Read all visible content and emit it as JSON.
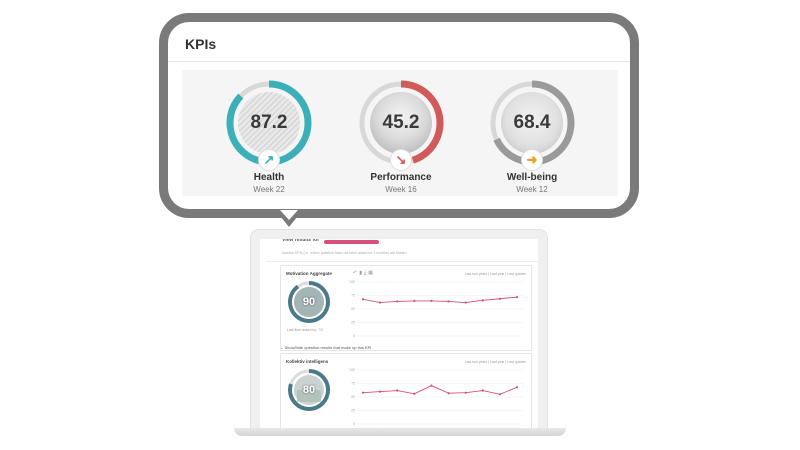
{
  "kpis": {
    "title": "KPIs",
    "items": [
      {
        "value": "87.2",
        "name": "Health",
        "week": "Week 22",
        "progress": 0.87,
        "color": "#3bb0b9",
        "trend": "up",
        "trend_color": "#3bb0b9",
        "trend_glyph": "↗"
      },
      {
        "value": "45.2",
        "name": "Performance",
        "week": "Week 16",
        "progress": 0.45,
        "color": "#d15a5a",
        "trend": "down",
        "trend_color": "#d15a5a",
        "trend_glyph": "↘"
      },
      {
        "value": "68.4",
        "name": "Well-being",
        "week": "Week 12",
        "progress": 0.68,
        "color": "#9a9a9a",
        "trend": "flat",
        "trend_color": "#f0a020",
        "trend_glyph": "➜"
      }
    ]
  },
  "dashboard": {
    "view_label": "View results for",
    "notice": "Inactive KPIs (i.e. where question have not been asked for 4 months) are hidden",
    "panels": [
      {
        "title": "Motivation Aggregate",
        "value": "90",
        "range": "Last two years | Last year | Last quarter",
        "sub": "Last time asked by: 7/3",
        "ring_color": "#4a7a8a",
        "progress": 0.9,
        "chart_data": {
          "type": "line",
          "values": [
            68,
            62,
            64,
            65,
            65,
            64,
            62,
            66,
            69,
            72
          ],
          "ylim": [
            0,
            100
          ],
          "yticks": [
            "100",
            "75",
            "50",
            "25",
            "0"
          ],
          "color": "#d4507c"
        }
      },
      {
        "title": "Kollektiv intelligens",
        "value": "80",
        "range": "Last two years | Last year | Last quarter",
        "sub": "",
        "ring_color": "#4a7a8a",
        "progress": 0.8,
        "chart_data": {
          "type": "line",
          "values": [
            58,
            60,
            62,
            56,
            71,
            57,
            58,
            62,
            55,
            68
          ],
          "ylim": [
            0,
            100
          ],
          "yticks": [
            "100",
            "75",
            "50",
            "25",
            "0"
          ],
          "color": "#d4507c"
        }
      }
    ],
    "toggle_label": "Show/hide question results that make up this KPI",
    "icons": [
      "undo-icon",
      "bar-chart-icon",
      "download-icon",
      "table-icon"
    ]
  }
}
